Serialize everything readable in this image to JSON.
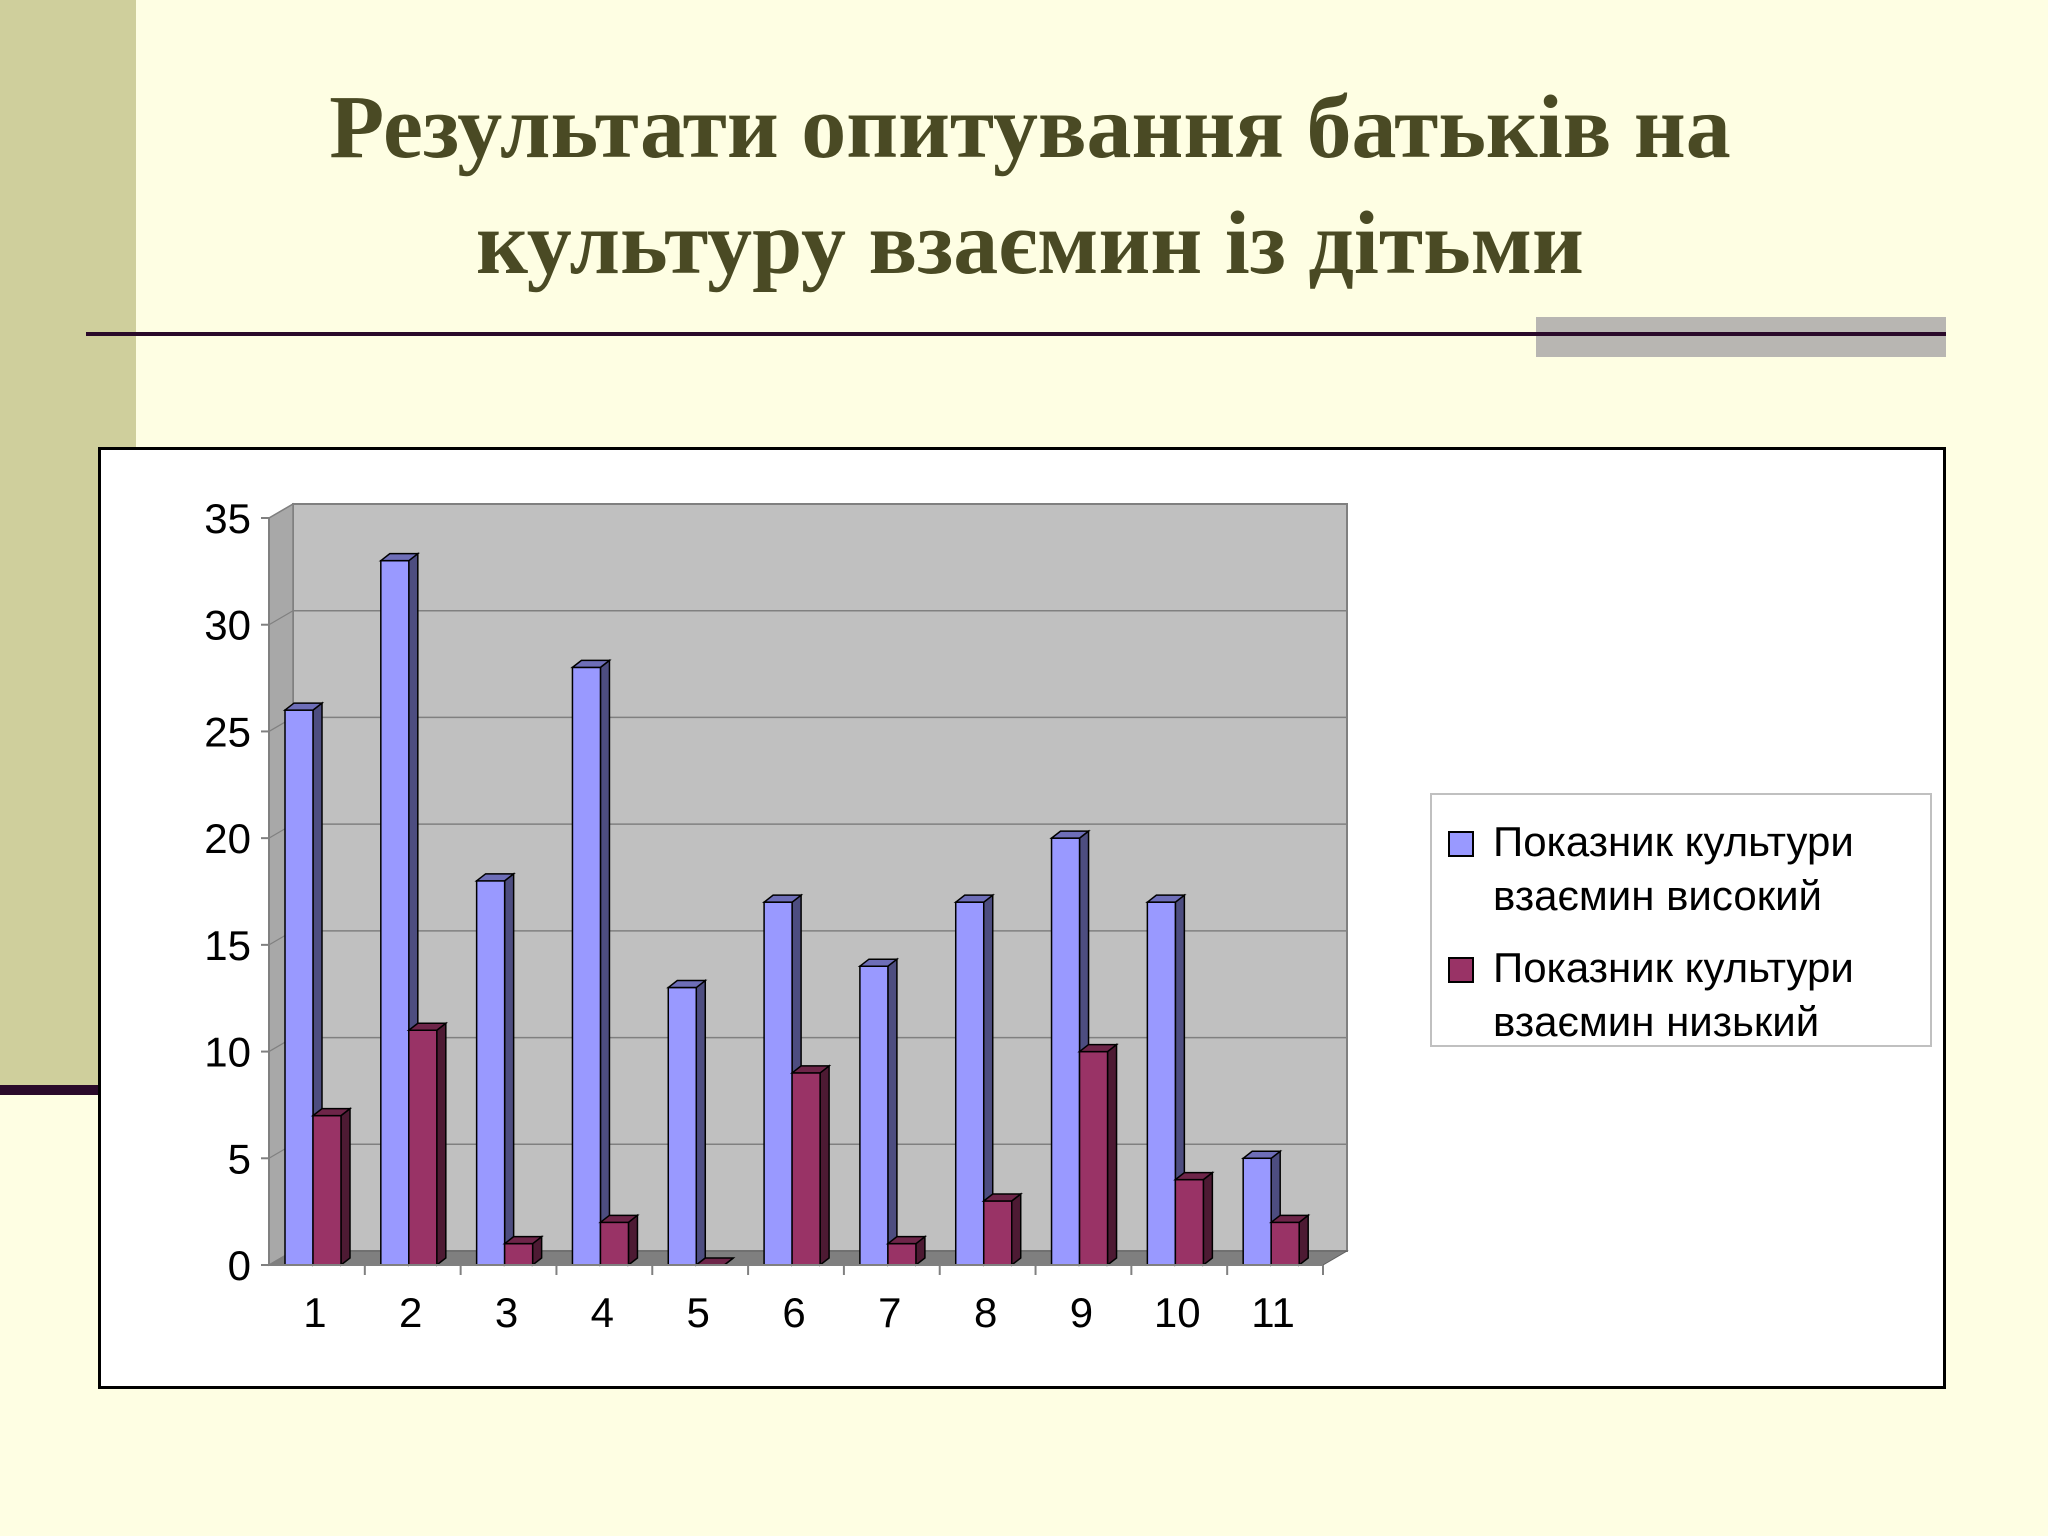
{
  "title_line1": "Результати опитування батьків на",
  "title_line2": "культуру взаємин із дітьми",
  "colors": {
    "background": "#fefee3",
    "side_band": "#cfcf9c",
    "title": "#4a4a24",
    "plot_area": "#c0c0c0",
    "series_high": "#9999ff",
    "series_low": "#993366"
  },
  "chart_data": {
    "type": "bar",
    "title": "",
    "xlabel": "",
    "ylabel": "",
    "categories": [
      "1",
      "2",
      "3",
      "4",
      "5",
      "6",
      "7",
      "8",
      "9",
      "10",
      "11"
    ],
    "series": [
      {
        "name": "Показник культури взаємин високий",
        "values": [
          26,
          33,
          18,
          28,
          13,
          17,
          14,
          17,
          20,
          17,
          5
        ]
      },
      {
        "name": "Показник культури взаємин низький",
        "values": [
          7,
          11,
          1,
          2,
          0,
          9,
          1,
          3,
          10,
          4,
          2
        ]
      }
    ],
    "ylim": [
      0,
      35
    ],
    "yticks": [
      "0",
      "5",
      "10",
      "15",
      "20",
      "25",
      "30",
      "35"
    ],
    "grid": true,
    "legend_position": "right",
    "legend": [
      {
        "line1": "Показник культури",
        "line2": "взаємин високий"
      },
      {
        "line1": "Показник культури",
        "line2": "взаємин низький"
      }
    ]
  }
}
